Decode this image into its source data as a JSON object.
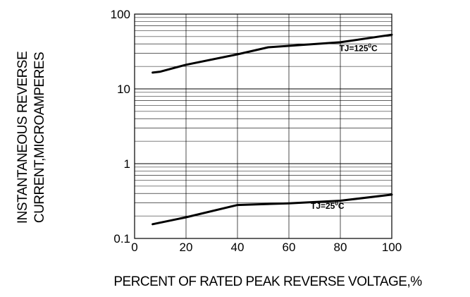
{
  "chart_data": {
    "type": "line",
    "xlabel": "PERCENT  OF  RATED PEAK REVERSE VOLTAGE,%",
    "ylabel_lines": [
      "INSTANTANEOUS REVERSE",
      "CURRENT,MICROAMPERES"
    ],
    "xlim": [
      0,
      100
    ],
    "ylim": [
      0.1,
      100
    ],
    "yscale": "log",
    "grid": true,
    "x_ticks": [
      "0",
      "20",
      "40",
      "60",
      "80",
      "100"
    ],
    "y_ticks": [
      "0.1",
      "1",
      "10",
      "100"
    ],
    "series": [
      {
        "name": "TJ=125°C",
        "label_base": "TJ=125",
        "label_sup": "0",
        "label_unit": "C",
        "x": [
          7,
          10,
          20,
          40,
          52,
          80,
          100
        ],
        "y": [
          16.5,
          17,
          21,
          29,
          36,
          42,
          53
        ]
      },
      {
        "name": "TJ=25°C",
        "label_base": "TJ=25",
        "label_sup": "0",
        "label_unit": "C",
        "x": [
          7,
          20,
          40,
          60,
          80,
          100
        ],
        "y": [
          0.155,
          0.192,
          0.28,
          0.295,
          0.32,
          0.385
        ]
      }
    ]
  }
}
